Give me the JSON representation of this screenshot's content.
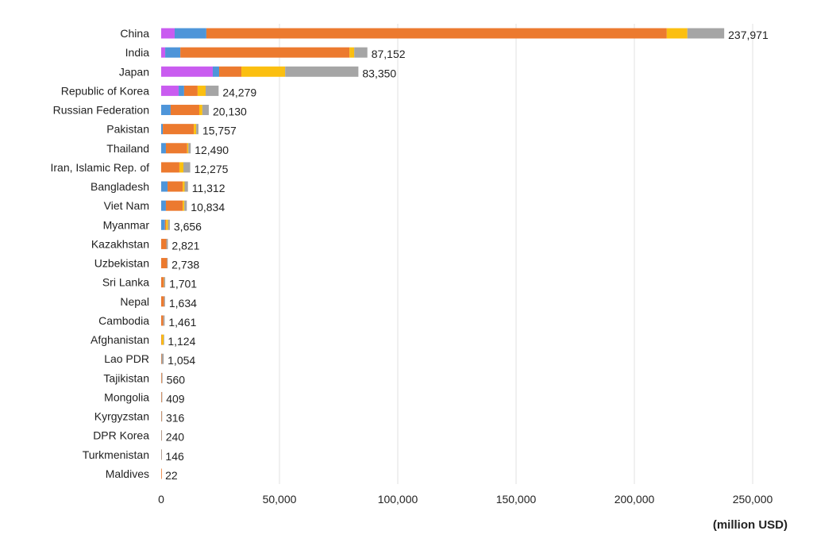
{
  "chart_data": {
    "type": "bar",
    "orientation": "horizontal",
    "stacked": true,
    "xlabel": "(million USD)",
    "xlim": [
      0,
      250000
    ],
    "xticks": [
      0,
      50000,
      100000,
      150000,
      200000,
      250000
    ],
    "xtick_labels": [
      "0",
      "50,000",
      "100,000",
      "150,000",
      "200,000",
      "250,000"
    ],
    "grid": true,
    "legend": "none",
    "categories": [
      "China",
      "India",
      "Japan",
      "Republic of Korea",
      "Russian Federation",
      "Pakistan",
      "Thailand",
      "Iran, Islamic Rep. of",
      "Bangladesh",
      "Viet Nam",
      "Myanmar",
      "Kazakhstan",
      "Uzbekistan",
      "Sri Lanka",
      "Nepal",
      "Cambodia",
      "Afghanistan",
      "Lao PDR",
      "Tajikistan",
      "Mongolia",
      "Kyrgyzstan",
      "DPR Korea",
      "Turkmenistan",
      "Maldives"
    ],
    "totals": [
      237971,
      87152,
      83350,
      24279,
      20130,
      15757,
      12490,
      12275,
      11312,
      10834,
      3656,
      2821,
      2738,
      1701,
      1634,
      1461,
      1124,
      1054,
      560,
      409,
      316,
      240,
      146,
      22
    ],
    "total_labels": [
      "237,971",
      "87,152",
      "83,350",
      "24,279",
      "20,130",
      "15,757",
      "12,490",
      "12,275",
      "11,312",
      "10,834",
      "3,656",
      "2,821",
      "2,738",
      "1,701",
      "1,634",
      "1,461",
      "1,124",
      "1,054",
      "560",
      "409",
      "316",
      "240",
      "146",
      "22"
    ],
    "series": [
      {
        "color": "#c95cf0",
        "values": [
          5700,
          1700,
          21800,
          7400,
          0,
          0,
          0,
          0,
          0,
          0,
          0,
          0,
          0,
          0,
          0,
          0,
          0,
          0,
          0,
          0,
          0,
          0,
          0,
          0
        ]
      },
      {
        "color": "#4e95d9",
        "values": [
          13400,
          6400,
          2700,
          2300,
          4000,
          700,
          2000,
          0,
          2700,
          2000,
          1600,
          0,
          0,
          0,
          0,
          0,
          0,
          0,
          0,
          0,
          0,
          0,
          0,
          0
        ]
      },
      {
        "color": "#ec7a2f",
        "values": [
          194600,
          71500,
          9400,
          5700,
          12100,
          13100,
          9000,
          7700,
          6400,
          7100,
          500,
          2200,
          2500,
          1100,
          1200,
          900,
          200,
          200,
          250,
          200,
          150,
          80,
          50,
          22
        ]
      },
      {
        "color": "#fbbf10",
        "values": [
          8700,
          2000,
          18500,
          3400,
          1300,
          1000,
          500,
          1700,
          800,
          700,
          800,
          0,
          0,
          100,
          0,
          0,
          800,
          0,
          0,
          0,
          0,
          0,
          0,
          0
        ]
      },
      {
        "color": "#a5a5a5",
        "values": [
          15571,
          5552,
          30950,
          5479,
          2730,
          957,
          990,
          2875,
          1412,
          1034,
          756,
          621,
          238,
          501,
          434,
          561,
          124,
          854,
          310,
          209,
          166,
          160,
          96,
          0
        ]
      }
    ]
  }
}
